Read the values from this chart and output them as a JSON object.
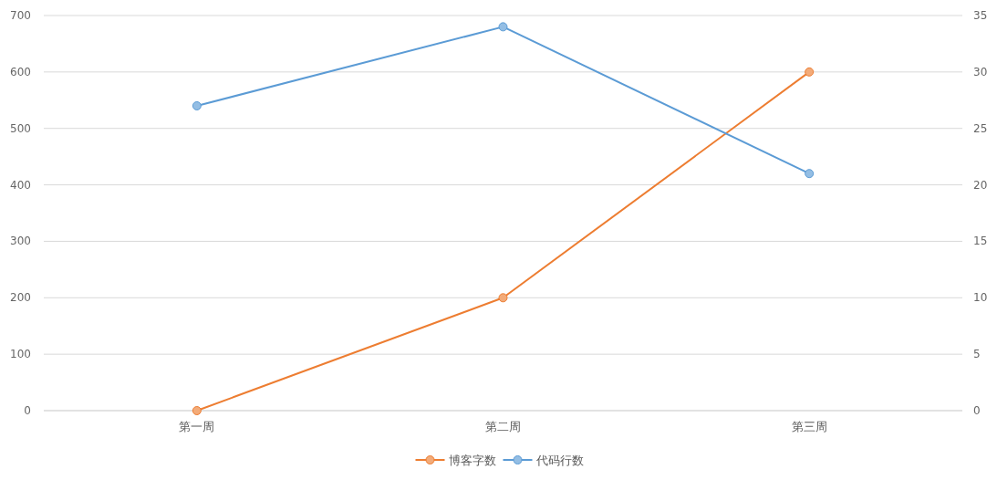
{
  "chart_data": {
    "type": "line",
    "categories": [
      "第一周",
      "第二周",
      "第三周"
    ],
    "series": [
      {
        "name": "博客字数",
        "color": "#ed7d31",
        "values": [
          0,
          200,
          600
        ]
      },
      {
        "name": "代码行数",
        "color": "#5b9bd5",
        "values": [
          27,
          34,
          21
        ],
        "axis": "y2"
      }
    ],
    "ylim": [
      0,
      700
    ],
    "yticks": [
      0,
      100,
      200,
      300,
      400,
      500,
      600,
      700
    ],
    "y2lim": [
      0,
      35
    ],
    "y2ticks": [
      0,
      5,
      10,
      15,
      20,
      25,
      30,
      35
    ],
    "grid": "y",
    "legend": "bottom",
    "marker": "circle",
    "line_style": "solid"
  }
}
